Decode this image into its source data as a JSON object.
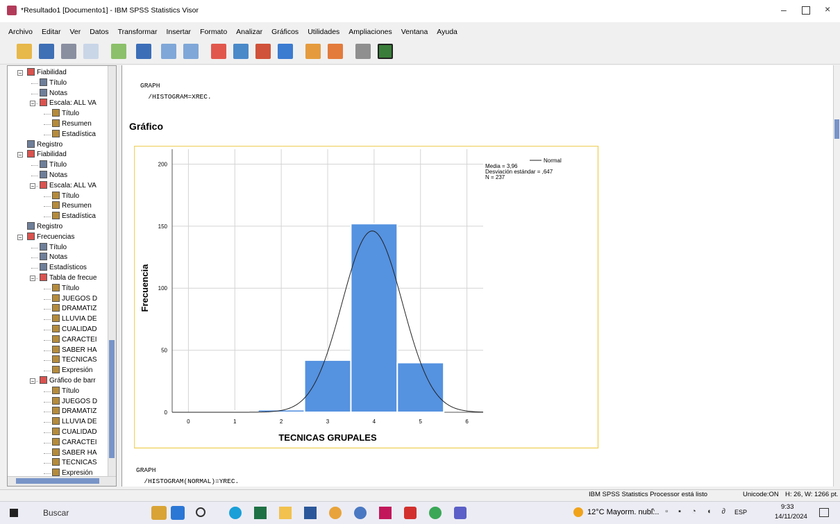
{
  "window": {
    "title": "*Resultado1 [Documento1] - IBM SPSS Statistics Visor"
  },
  "menu": [
    "Archivo",
    "Editar",
    "Ver",
    "Datos",
    "Transformar",
    "Insertar",
    "Formato",
    "Analizar",
    "Gráficos",
    "Utilidades",
    "Ampliaciones",
    "Ventana",
    "Ayuda"
  ],
  "tree": [
    {
      "label": "Fiabilidad",
      "children": [
        {
          "label": "Título"
        },
        {
          "label": "Notas"
        },
        {
          "label": "Escala: ALL VA",
          "children": [
            {
              "label": "Título"
            },
            {
              "label": "Resumen"
            },
            {
              "label": "Estadística"
            }
          ]
        }
      ]
    },
    {
      "label": "Registro"
    },
    {
      "label": "Fiabilidad",
      "children": [
        {
          "label": "Título"
        },
        {
          "label": "Notas"
        },
        {
          "label": "Escala: ALL VA",
          "children": [
            {
              "label": "Título"
            },
            {
              "label": "Resumen"
            },
            {
              "label": "Estadística"
            }
          ]
        }
      ]
    },
    {
      "label": "Registro"
    },
    {
      "label": "Frecuencias",
      "children": [
        {
          "label": "Título"
        },
        {
          "label": "Notas"
        },
        {
          "label": "Estadísticos"
        },
        {
          "label": "Tabla de frecue",
          "children": [
            {
              "label": "Título"
            },
            {
              "label": "JUEGOS D"
            },
            {
              "label": "DRAMATIZ"
            },
            {
              "label": "LLUVIA DE"
            },
            {
              "label": "CUALIDAD"
            },
            {
              "label": "CARACTEI"
            },
            {
              "label": "SABER HA"
            },
            {
              "label": "TECNICAS"
            },
            {
              "label": "Expresión"
            }
          ]
        },
        {
          "label": "Gráfico de barr",
          "children": [
            {
              "label": "Título"
            },
            {
              "label": "JUEGOS D"
            },
            {
              "label": "DRAMATIZ"
            },
            {
              "label": "LLUVIA DE"
            },
            {
              "label": "CUALIDAD"
            },
            {
              "label": "CARACTEI"
            },
            {
              "label": "SABER HA"
            },
            {
              "label": "TECNICAS"
            },
            {
              "label": "Expresión"
            }
          ]
        }
      ]
    }
  ],
  "output": {
    "syntax_top": [
      "GRAPH",
      "  /HISTOGRAM=XREC."
    ],
    "heading": "Gráfico",
    "syntax_bottom": [
      "GRAPH",
      "  /HISTOGRAM(NORMAL)=YREC."
    ]
  },
  "chart_data": {
    "type": "histogram",
    "x_label": "TECNICAS GRUPALES",
    "y_label": "Frecuencia",
    "bins": [
      0.5,
      1.5,
      2.5,
      3.5,
      4.5,
      5.5
    ],
    "counts": [
      1,
      2,
      42,
      152,
      40
    ],
    "color": "#5592e0",
    "xlim": [
      -0.35,
      6.35
    ],
    "ylim": [
      0,
      212
    ],
    "xticks": [
      0,
      1,
      2,
      3,
      4,
      5,
      6
    ],
    "yticks": [
      0,
      50,
      100,
      150,
      200
    ],
    "grid": true,
    "normal": {
      "name": "Normal",
      "mean": {
        "value": 3.96,
        "label": "Media = 3,96"
      },
      "sd": {
        "value": 0.647,
        "label": "Desviación estándar = ,647"
      },
      "n": {
        "value": 237,
        "label": "N = 237"
      }
    }
  },
  "status": {
    "message": "IBM SPSS Statistics Processor está listo",
    "unicode": "Unicode:ON",
    "size": "H: 26, W: 1266 pt."
  },
  "taskbar": {
    "search": "Buscar",
    "weather": "12°C Mayorm. nubl...",
    "language": "ESP",
    "time": "9:33",
    "date": "14/11/2024"
  }
}
